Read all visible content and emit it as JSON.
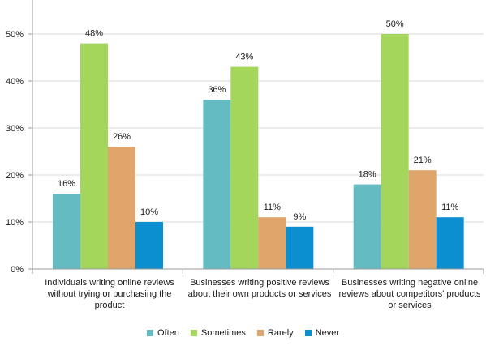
{
  "chart_data": {
    "type": "bar",
    "categories": [
      "Individuals writing online reviews without trying or purchasing the product",
      "Businesses writing positive reviews about their own products or services",
      "Businesses writing negative online reviews about  competitors' products or services"
    ],
    "series": [
      {
        "name": "Often",
        "color": "#64bbc1",
        "values": [
          16,
          36,
          18
        ],
        "labels": [
          "16%",
          "36%",
          "18%"
        ]
      },
      {
        "name": "Sometimes",
        "color": "#a3d65b",
        "values": [
          48,
          43,
          50
        ],
        "labels": [
          "48%",
          "43%",
          "50%"
        ]
      },
      {
        "name": "Rarely",
        "color": "#e0a56a",
        "values": [
          26,
          11,
          21
        ],
        "labels": [
          "26%",
          "11%",
          "21%"
        ]
      },
      {
        "name": "Never",
        "color": "#0c8fd1",
        "values": [
          10,
          9,
          11
        ],
        "labels": [
          "10%",
          "9%",
          "11%"
        ]
      }
    ],
    "yticks": [
      "0%",
      "10%",
      "20%",
      "30%",
      "40%",
      "50%"
    ],
    "ylim": [
      0,
      55
    ],
    "grid": true,
    "legend": "bottom"
  },
  "category_labels": {
    "c0": "Individuals writing online reviews without trying or purchasing the product",
    "c1": "Businesses writing positive reviews about their own products or services",
    "c2": "Businesses writing negative online reviews about  competitors' products or services"
  },
  "legend": {
    "often": "Often",
    "sometimes": "Sometimes",
    "rarely": "Rarely",
    "never": "Never"
  }
}
